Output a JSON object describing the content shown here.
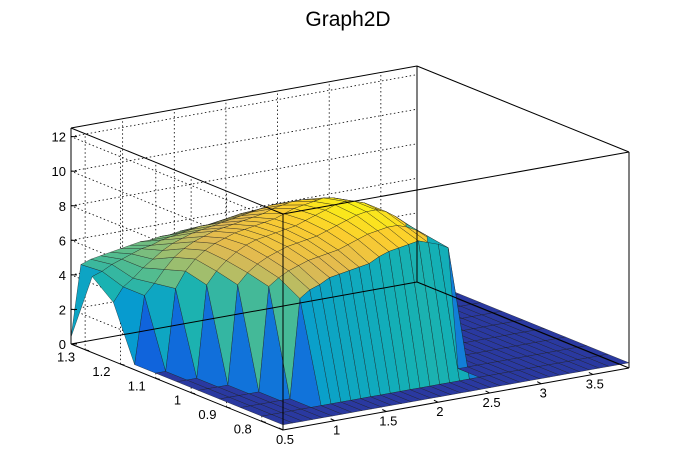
{
  "chart_data": {
    "type": "surface",
    "title": "Graph2D",
    "xlabel": "",
    "ylabel": "",
    "zlabel": "",
    "x_ticks": [
      "0.5",
      "1",
      "1.5",
      "2",
      "2.5",
      "3",
      "3.5"
    ],
    "y_ticks": [
      "0.8",
      "0.9",
      "1",
      "1.1",
      "1.2",
      "1.3"
    ],
    "z_ticks": [
      "0",
      "2",
      "4",
      "6",
      "8",
      "10",
      "12"
    ],
    "xlim": [
      0.5,
      3.85
    ],
    "ylim": [
      0.74,
      1.34
    ],
    "zlim": [
      0,
      12.5
    ],
    "grid": true,
    "palette": "kBird",
    "colors": {
      "low": "#352a87",
      "mid": "#0fb5a6",
      "high": "#f9fb0e"
    },
    "surface": {
      "x_range": [
        0.5,
        3.85
      ],
      "y_range": [
        0.74,
        1.34
      ],
      "rows": [
        {
          "y": 0.74,
          "z": [
            0.3,
            0.3,
            0.3,
            0.3,
            0.3,
            0.3,
            0.3,
            0.3,
            0.3,
            0.3,
            0.3,
            0.3,
            0.3,
            0.3,
            0.3,
            0.3,
            0.3,
            0.3,
            0.3,
            0.3,
            0.3,
            0.3,
            0.3,
            0.3,
            0.3,
            0.3,
            0.3,
            0.3,
            0.3,
            0.3,
            0.3,
            0.3,
            0.3,
            0.3,
            0.3,
            0.3
          ]
        },
        {
          "y": 0.8,
          "z": [
            0.3,
            0.3,
            0.3,
            0.3,
            0.3,
            0.3,
            0.3,
            0.3,
            0.3,
            0.3,
            0.3,
            0.3,
            0.3,
            0.3,
            0.3,
            0.3,
            0.3,
            0.3,
            0.3,
            0.3,
            0.3,
            0.3,
            0.3,
            0.3,
            0.3,
            0.3,
            0.3,
            0.3,
            0.3,
            0.3,
            0.3,
            0.3,
            0.3,
            0.3,
            0.3,
            0.3
          ]
        },
        {
          "y": 0.86,
          "z": [
            0.3,
            0.3,
            0.3,
            0.3,
            0.3,
            0.3,
            6.0,
            6.4,
            6.6,
            6.9,
            7.0,
            7.1,
            7.2,
            7.3,
            7.6,
            7.8,
            7.9,
            8.0,
            8.1,
            7.9,
            7.7,
            7.4,
            0.3,
            0.3,
            0.3,
            0.3,
            0.3,
            0.3,
            0.3,
            0.3,
            0.3,
            0.3,
            0.3,
            0.3,
            0.3,
            0.3
          ]
        },
        {
          "y": 0.92,
          "z": [
            0.3,
            0.3,
            0.3,
            0.3,
            0.3,
            6.3,
            6.7,
            7.0,
            7.2,
            7.4,
            7.5,
            7.6,
            7.7,
            7.9,
            8.1,
            8.3,
            8.4,
            8.5,
            8.5,
            8.3,
            8.0,
            7.6,
            0.3,
            0.3,
            0.3,
            0.3,
            0.3,
            0.3,
            0.3,
            0.3,
            0.3,
            0.3,
            0.3,
            0.3,
            0.3,
            0.3
          ]
        },
        {
          "y": 0.98,
          "z": [
            0.3,
            0.3,
            0.3,
            0.3,
            6.0,
            6.6,
            7.0,
            7.3,
            7.5,
            7.7,
            7.8,
            7.9,
            8.0,
            8.2,
            8.4,
            8.6,
            8.8,
            8.9,
            8.9,
            8.7,
            8.3,
            7.8,
            3.6,
            0.3,
            0.3,
            0.3,
            0.3,
            0.3,
            0.3,
            0.3,
            0.3,
            0.3,
            0.3,
            0.3,
            0.3,
            0.3
          ]
        },
        {
          "y": 1.04,
          "z": [
            0.3,
            0.3,
            0.3,
            5.6,
            6.3,
            6.8,
            7.2,
            7.5,
            7.7,
            7.8,
            7.9,
            8.0,
            8.1,
            8.3,
            8.5,
            8.7,
            8.9,
            9.0,
            8.9,
            8.7,
            8.3,
            7.8,
            4.5,
            2.4,
            0.3,
            0.3,
            0.3,
            0.3,
            0.3,
            0.3,
            0.3,
            0.3,
            0.3,
            0.3,
            0.3,
            0.3
          ]
        },
        {
          "y": 1.1,
          "z": [
            0.3,
            0.3,
            5.0,
            5.9,
            6.5,
            6.9,
            7.2,
            7.4,
            7.6,
            7.7,
            7.8,
            7.9,
            8.0,
            8.2,
            8.4,
            8.5,
            8.6,
            8.7,
            8.6,
            8.4,
            8.0,
            7.5,
            5.4,
            3.0,
            0.3,
            0.3,
            0.3,
            0.3,
            0.3,
            0.3,
            0.3,
            0.3,
            0.3,
            0.3,
            0.3,
            0.3
          ]
        },
        {
          "y": 1.16,
          "z": [
            0.3,
            4.2,
            4.8,
            5.5,
            6.1,
            6.5,
            6.8,
            7.0,
            7.2,
            7.3,
            7.4,
            7.5,
            7.6,
            7.7,
            7.9,
            8.0,
            8.1,
            8.1,
            8.0,
            7.8,
            7.4,
            6.9,
            5.8,
            3.6,
            0.3,
            0.3,
            0.3,
            0.3,
            0.3,
            0.3,
            0.3,
            0.3,
            0.3,
            0.3,
            0.3,
            0.3
          ]
        },
        {
          "y": 1.22,
          "z": [
            3.4,
            4.2,
            4.6,
            5.1,
            5.5,
            5.9,
            6.2,
            6.4,
            6.6,
            6.7,
            6.8,
            6.9,
            7.0,
            7.1,
            7.2,
            7.3,
            7.4,
            7.4,
            7.3,
            7.1,
            6.8,
            6.4,
            5.6,
            4.0,
            0.3,
            0.3,
            0.3,
            0.3,
            0.3,
            0.3,
            0.3,
            0.3,
            0.3,
            0.3,
            0.3,
            0.3
          ]
        },
        {
          "y": 1.28,
          "z": [
            4.4,
            4.6,
            4.9,
            5.1,
            5.3,
            5.5,
            5.6,
            5.8,
            5.9,
            6.0,
            6.1,
            6.2,
            6.2,
            6.3,
            6.4,
            6.5,
            6.5,
            6.5,
            6.4,
            6.3,
            6.1,
            5.8,
            5.2,
            4.2,
            3.2,
            0.3,
            0.3,
            0.3,
            0.3,
            0.3,
            0.3,
            0.3,
            0.3,
            0.3,
            0.3,
            0.3
          ]
        },
        {
          "y": 1.34,
          "z": [
            0.4,
            4.5,
            4.7,
            4.8,
            4.9,
            5.0,
            5.1,
            5.2,
            5.2,
            5.3,
            5.3,
            5.4,
            5.4,
            5.4,
            5.5,
            5.5,
            5.5,
            5.5,
            5.4,
            5.3,
            5.2,
            5.0,
            4.6,
            4.0,
            3.4,
            0.4,
            0.3,
            0.3,
            0.3,
            0.3,
            0.3,
            0.3,
            0.3,
            0.3,
            0.3,
            0.3
          ]
        }
      ]
    }
  }
}
